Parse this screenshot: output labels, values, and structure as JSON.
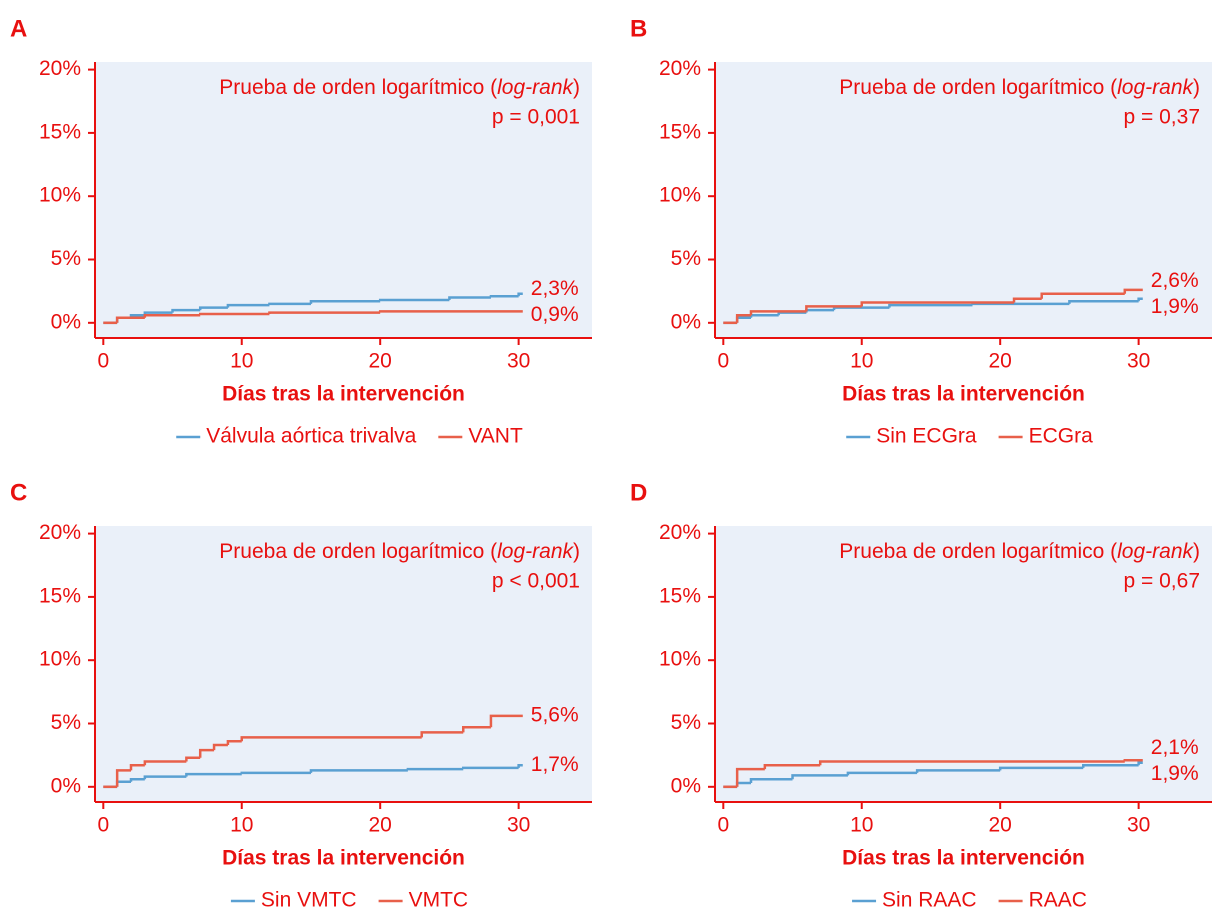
{
  "chart_data": [
    {
      "type": "step",
      "panel": "A",
      "annotation": [
        "Prueba de orden logarítmico (",
        "log-rank",
        ")"
      ],
      "p_value": "p = 0,001",
      "xlabel": "Días tras la intervención",
      "xlim": [
        -0.6,
        35.3
      ],
      "xticks": [
        0,
        10,
        20,
        30
      ],
      "ylim": [
        -1.2,
        20.6
      ],
      "yticks": [
        {
          "value": 0,
          "label": "0%"
        },
        {
          "value": 5,
          "label": "5%"
        },
        {
          "value": 10,
          "label": "10%"
        },
        {
          "value": 15,
          "label": "15%"
        },
        {
          "value": 20,
          "label": "20%"
        }
      ],
      "series": [
        {
          "name": "Válvula aórtica trivalva",
          "color": "#5aa0d2",
          "x": [
            0,
            1,
            2,
            3,
            5,
            7,
            9,
            12,
            15,
            20,
            25,
            28,
            30,
            30.3
          ],
          "values": [
            0,
            0.4,
            0.6,
            0.8,
            1.0,
            1.2,
            1.4,
            1.5,
            1.7,
            1.8,
            2.0,
            2.1,
            2.3,
            2.3
          ],
          "value_labels": [
            null,
            null,
            null,
            null,
            null,
            null,
            null,
            null,
            null,
            null,
            null,
            null,
            null,
            "2,3%"
          ]
        },
        {
          "name": "VANT",
          "color": "#e8604a",
          "x": [
            0,
            1,
            3,
            7,
            12,
            20,
            30.3
          ],
          "values": [
            0,
            0.4,
            0.6,
            0.7,
            0.8,
            0.9,
            0.9
          ],
          "value_labels": [
            null,
            null,
            null,
            null,
            null,
            null,
            "0,9%"
          ]
        }
      ]
    },
    {
      "type": "step",
      "panel": "B",
      "annotation": [
        "Prueba de orden logarítmico (",
        "log-rank",
        ")"
      ],
      "p_value": "p = 0,37",
      "xlabel": "Días tras la intervención",
      "xlim": [
        -0.6,
        35.3
      ],
      "xticks": [
        0,
        10,
        20,
        30
      ],
      "ylim": [
        -1.2,
        20.6
      ],
      "yticks": [
        {
          "value": 0,
          "label": "0%"
        },
        {
          "value": 5,
          "label": "5%"
        },
        {
          "value": 10,
          "label": "10%"
        },
        {
          "value": 15,
          "label": "15%"
        },
        {
          "value": 20,
          "label": "20%"
        }
      ],
      "series": [
        {
          "name": "Sin ECGra",
          "color": "#5aa0d2",
          "x": [
            0,
            1,
            2,
            4,
            6,
            8,
            12,
            18,
            25,
            30,
            30.3
          ],
          "values": [
            0,
            0.4,
            0.6,
            0.8,
            1.0,
            1.2,
            1.4,
            1.5,
            1.7,
            1.9,
            1.9
          ],
          "value_labels": [
            null,
            null,
            null,
            null,
            null,
            null,
            null,
            null,
            null,
            null,
            "1,9%"
          ]
        },
        {
          "name": "ECGra",
          "color": "#e8604a",
          "x": [
            0,
            1,
            2,
            6,
            10,
            21,
            23,
            29,
            30.3
          ],
          "values": [
            0,
            0.6,
            0.9,
            1.3,
            1.6,
            1.9,
            2.3,
            2.6,
            2.6
          ],
          "value_labels": [
            null,
            null,
            null,
            null,
            null,
            null,
            null,
            null,
            "2,6%"
          ]
        }
      ]
    },
    {
      "type": "step",
      "panel": "C",
      "annotation": [
        "Prueba de orden logarítmico (",
        "log-rank",
        ")"
      ],
      "p_value": "p < 0,001",
      "xlabel": "Días tras la intervención",
      "xlim": [
        -0.6,
        35.3
      ],
      "xticks": [
        0,
        10,
        20,
        30
      ],
      "ylim": [
        -1.2,
        20.6
      ],
      "yticks": [
        {
          "value": 0,
          "label": "0%"
        },
        {
          "value": 5,
          "label": "5%"
        },
        {
          "value": 10,
          "label": "10%"
        },
        {
          "value": 15,
          "label": "15%"
        },
        {
          "value": 20,
          "label": "20%"
        }
      ],
      "series": [
        {
          "name": "Sin VMTC",
          "color": "#5aa0d2",
          "x": [
            0,
            1,
            2,
            3,
            6,
            10,
            15,
            22,
            26,
            30,
            30.3
          ],
          "values": [
            0,
            0.4,
            0.6,
            0.8,
            1.0,
            1.1,
            1.3,
            1.4,
            1.5,
            1.7,
            1.7
          ],
          "value_labels": [
            null,
            null,
            null,
            null,
            null,
            null,
            null,
            null,
            null,
            null,
            "1,7%"
          ]
        },
        {
          "name": "VMTC",
          "color": "#e8604a",
          "x": [
            0,
            1,
            2,
            3,
            6,
            7,
            8,
            9,
            10,
            23,
            26,
            28,
            30.3
          ],
          "values": [
            0,
            1.3,
            1.7,
            2.0,
            2.3,
            2.9,
            3.3,
            3.6,
            3.9,
            4.3,
            4.7,
            5.6,
            5.6
          ],
          "value_labels": [
            null,
            null,
            null,
            null,
            null,
            null,
            null,
            null,
            null,
            null,
            null,
            null,
            "5,6%"
          ]
        }
      ]
    },
    {
      "type": "step",
      "panel": "D",
      "annotation": [
        "Prueba de orden logarítmico (",
        "log-rank",
        ")"
      ],
      "p_value": "p = 0,67",
      "xlabel": "Días tras la intervención",
      "xlim": [
        -0.6,
        35.3
      ],
      "xticks": [
        0,
        10,
        20,
        30
      ],
      "ylim": [
        -1.2,
        20.6
      ],
      "yticks": [
        {
          "value": 0,
          "label": "0%"
        },
        {
          "value": 5,
          "label": "5%"
        },
        {
          "value": 10,
          "label": "10%"
        },
        {
          "value": 15,
          "label": "15%"
        },
        {
          "value": 20,
          "label": "20%"
        }
      ],
      "series": [
        {
          "name": "Sin RAAC",
          "color": "#5aa0d2",
          "x": [
            0,
            1,
            2,
            5,
            9,
            14,
            20,
            26,
            30,
            30.3
          ],
          "values": [
            0,
            0.3,
            0.6,
            0.9,
            1.1,
            1.3,
            1.5,
            1.7,
            1.9,
            1.9
          ],
          "value_labels": [
            null,
            null,
            null,
            null,
            null,
            null,
            null,
            null,
            null,
            "1,9%"
          ]
        },
        {
          "name": "RAAC",
          "color": "#e8604a",
          "x": [
            0,
            1,
            3,
            7,
            29,
            30.3
          ],
          "values": [
            0,
            1.4,
            1.7,
            2.0,
            2.1,
            2.1
          ],
          "value_labels": [
            null,
            null,
            null,
            null,
            null,
            "2,1%"
          ]
        }
      ]
    }
  ]
}
